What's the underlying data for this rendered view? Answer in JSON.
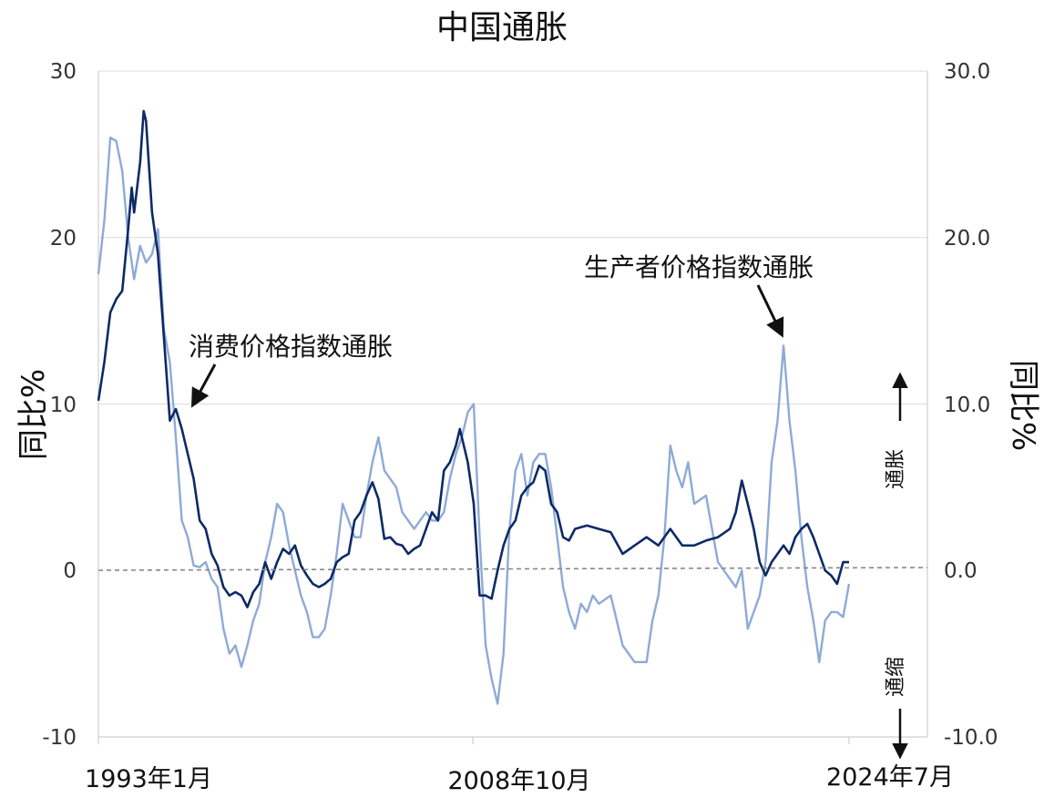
{
  "chart_data": {
    "type": "line",
    "title": "中国通胀",
    "ylabel_left": "同比%",
    "ylabel_right": "同比%",
    "ylim": [
      -10,
      30
    ],
    "grid": true,
    "left_ticks": [
      "30",
      "20",
      "10",
      "0",
      "-10"
    ],
    "right_ticks": [
      "30.0",
      "20.0",
      "10.0",
      "0.0",
      "-10.0"
    ],
    "x_tick_labels": [
      "1993年1月",
      "2008年10月",
      "2024年7月"
    ],
    "x_range": [
      1993.0,
      2024.5
    ],
    "annotations": {
      "cpi": "消费价格指数通胀",
      "ppi": "生产者价格指数通胀",
      "inflation": "通胀",
      "deflation": "通缩"
    },
    "colors": {
      "cpi": "#0d2a66",
      "ppi": "#8eaad6",
      "grid": "#dcdcdc",
      "zero_line": "#888888"
    },
    "series": [
      {
        "key": "cpi",
        "x": [
          1993.0,
          1993.25,
          1993.5,
          1993.75,
          1994.0,
          1994.25,
          1994.4,
          1994.5,
          1994.75,
          1994.9,
          1995.0,
          1995.25,
          1995.5,
          1995.75,
          1996.0,
          1996.25,
          1996.5,
          1996.75,
          1997.0,
          1997.25,
          1997.5,
          1997.75,
          1998.0,
          1998.25,
          1998.5,
          1998.75,
          1999.0,
          1999.25,
          1999.5,
          1999.75,
          2000.0,
          2000.25,
          2000.5,
          2000.75,
          2001.0,
          2001.25,
          2001.5,
          2001.75,
          2002.0,
          2002.25,
          2002.5,
          2002.75,
          2003.0,
          2003.25,
          2003.5,
          2003.75,
          2004.0,
          2004.25,
          2004.5,
          2004.75,
          2005.0,
          2005.25,
          2005.5,
          2005.75,
          2006.0,
          2006.25,
          2006.5,
          2006.75,
          2007.0,
          2007.25,
          2007.5,
          2007.75,
          2008.0,
          2008.17,
          2008.5,
          2008.75,
          2009.0,
          2009.25,
          2009.5,
          2009.75,
          2010.0,
          2010.25,
          2010.5,
          2010.75,
          2011.0,
          2011.25,
          2011.5,
          2011.75,
          2012.0,
          2012.25,
          2012.5,
          2012.75,
          2013.0,
          2013.5,
          2014.0,
          2014.5,
          2015.0,
          2015.5,
          2016.0,
          2016.5,
          2017.0,
          2017.5,
          2018.0,
          2018.5,
          2019.0,
          2019.5,
          2019.75,
          2020.0,
          2020.25,
          2020.5,
          2020.75,
          2021.0,
          2021.25,
          2021.5,
          2021.75,
          2022.0,
          2022.25,
          2022.5,
          2022.75,
          2023.0,
          2023.25,
          2023.5,
          2023.75,
          2024.0,
          2024.25,
          2024.5
        ],
        "y": [
          10.2,
          12.5,
          15.5,
          16.3,
          16.8,
          20.5,
          23.0,
          21.5,
          24.5,
          27.6,
          27.0,
          21.5,
          19.0,
          14.0,
          9.0,
          9.7,
          8.5,
          7.0,
          5.5,
          3.0,
          2.5,
          1.0,
          0.3,
          -1.0,
          -1.5,
          -1.3,
          -1.5,
          -2.2,
          -1.3,
          -0.8,
          0.5,
          -0.5,
          0.5,
          1.3,
          1.0,
          1.5,
          0.3,
          -0.3,
          -0.8,
          -1.0,
          -0.8,
          -0.5,
          0.5,
          0.8,
          1.0,
          3.0,
          3.5,
          4.5,
          5.3,
          4.3,
          1.9,
          2.0,
          1.6,
          1.5,
          1.0,
          1.3,
          1.5,
          2.5,
          3.5,
          3.0,
          6.0,
          6.5,
          7.5,
          8.5,
          6.5,
          4.0,
          -1.5,
          -1.5,
          -1.7,
          0.0,
          1.5,
          2.5,
          3.0,
          4.5,
          5.0,
          5.3,
          6.3,
          6.0,
          4.0,
          3.5,
          2.0,
          1.8,
          2.5,
          2.7,
          2.5,
          2.3,
          1.0,
          1.5,
          2.0,
          1.5,
          2.5,
          1.5,
          1.5,
          1.8,
          2.0,
          2.5,
          3.5,
          5.4,
          4.0,
          2.5,
          0.5,
          -0.3,
          0.5,
          1.0,
          1.5,
          1.0,
          2.0,
          2.5,
          2.8,
          2.0,
          1.0,
          0.0,
          -0.3,
          -0.8,
          0.5,
          0.5
        ]
      },
      {
        "key": "ppi",
        "x": [
          1993.0,
          1993.25,
          1993.5,
          1993.75,
          1994.0,
          1994.25,
          1994.5,
          1994.75,
          1995.0,
          1995.25,
          1995.5,
          1995.75,
          1996.0,
          1996.25,
          1996.5,
          1996.75,
          1997.0,
          1997.25,
          1997.5,
          1997.75,
          1998.0,
          1998.25,
          1998.5,
          1998.75,
          1999.0,
          1999.25,
          1999.5,
          1999.75,
          2000.0,
          2000.25,
          2000.5,
          2000.75,
          2001.0,
          2001.25,
          2001.5,
          2001.75,
          2002.0,
          2002.25,
          2002.5,
          2002.75,
          2003.0,
          2003.25,
          2003.5,
          2003.75,
          2004.0,
          2004.25,
          2004.5,
          2004.75,
          2005.0,
          2005.25,
          2005.5,
          2005.75,
          2006.0,
          2006.25,
          2006.5,
          2006.75,
          2007.0,
          2007.25,
          2007.5,
          2007.75,
          2008.0,
          2008.25,
          2008.5,
          2008.75,
          2009.0,
          2009.25,
          2009.5,
          2009.75,
          2010.0,
          2010.25,
          2010.5,
          2010.75,
          2011.0,
          2011.25,
          2011.5,
          2011.75,
          2012.0,
          2012.25,
          2012.5,
          2012.75,
          2013.0,
          2013.25,
          2013.5,
          2013.75,
          2014.0,
          2014.5,
          2015.0,
          2015.5,
          2016.0,
          2016.25,
          2016.5,
          2016.75,
          2017.0,
          2017.25,
          2017.5,
          2017.75,
          2018.0,
          2018.5,
          2019.0,
          2019.5,
          2019.75,
          2020.0,
          2020.25,
          2020.5,
          2020.75,
          2021.0,
          2021.25,
          2021.5,
          2021.75,
          2022.0,
          2022.25,
          2022.5,
          2022.75,
          2023.0,
          2023.25,
          2023.5,
          2023.75,
          2024.0,
          2024.25,
          2024.5
        ],
        "y": [
          17.8,
          21.0,
          26.0,
          25.8,
          24.0,
          20.0,
          17.5,
          19.5,
          18.5,
          19.0,
          20.5,
          14.5,
          12.5,
          8.0,
          3.0,
          2.0,
          0.3,
          0.2,
          0.5,
          -0.5,
          -1.0,
          -3.5,
          -5.0,
          -4.5,
          -5.8,
          -4.5,
          -3.0,
          -2.0,
          0.5,
          2.0,
          4.0,
          3.5,
          1.5,
          0.0,
          -1.5,
          -2.5,
          -4.0,
          -4.0,
          -3.5,
          -1.5,
          1.0,
          4.0,
          3.0,
          2.0,
          2.0,
          4.5,
          6.5,
          8.0,
          6.0,
          5.5,
          5.0,
          3.5,
          3.0,
          2.5,
          3.0,
          3.5,
          3.0,
          3.0,
          3.5,
          5.5,
          7.0,
          8.0,
          9.5,
          10.0,
          2.0,
          -4.5,
          -6.5,
          -8.0,
          -5.0,
          2.5,
          6.0,
          7.0,
          4.5,
          6.5,
          7.0,
          7.0,
          5.0,
          2.0,
          -1.0,
          -2.5,
          -3.5,
          -2.0,
          -2.5,
          -1.5,
          -2.0,
          -1.5,
          -4.5,
          -5.5,
          -5.5,
          -3.0,
          -1.5,
          2.0,
          7.5,
          6.0,
          5.0,
          6.5,
          4.0,
          4.5,
          0.5,
          -0.5,
          -1.0,
          0.0,
          -3.5,
          -2.5,
          -1.5,
          0.5,
          6.5,
          9.0,
          13.5,
          9.0,
          6.0,
          2.0,
          -1.0,
          -3.0,
          -5.5,
          -3.0,
          -2.5,
          -2.5,
          -2.8,
          -0.8
        ]
      }
    ]
  }
}
